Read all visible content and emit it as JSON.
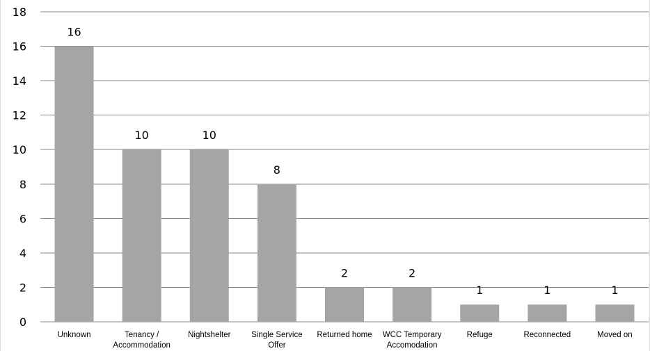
{
  "chart_data": {
    "type": "bar",
    "title": "",
    "xlabel": "",
    "ylabel": "",
    "ylim": [
      0,
      18
    ],
    "y_ticks": [
      0,
      2,
      4,
      6,
      8,
      10,
      12,
      14,
      16,
      18
    ],
    "grid": true,
    "legend": "none",
    "categories": [
      "Unknown",
      "Tenancy / Accommodation",
      "Nightshelter",
      "Single Service Offer",
      "Returned home",
      "WCC Temporary Accomodation",
      "Refuge",
      "Reconnected",
      "Moved on"
    ],
    "category_label_lines": [
      [
        "Unknown"
      ],
      [
        "Tenancy /",
        "Accommodation"
      ],
      [
        "Nightshelter"
      ],
      [
        "Single Service",
        "Offer"
      ],
      [
        "Returned home"
      ],
      [
        "WCC Temporary",
        "Accomodation"
      ],
      [
        "Refuge"
      ],
      [
        "Reconnected"
      ],
      [
        "Moved on"
      ]
    ],
    "values": [
      16,
      10,
      10,
      8,
      2,
      2,
      1,
      1,
      1
    ],
    "data_labels": [
      "16",
      "10",
      "10",
      "8",
      "2",
      "2",
      "1",
      "1",
      "1"
    ],
    "colors": {
      "bar": "#a5a5a5",
      "grid": "#868686",
      "text": "#000000"
    }
  }
}
